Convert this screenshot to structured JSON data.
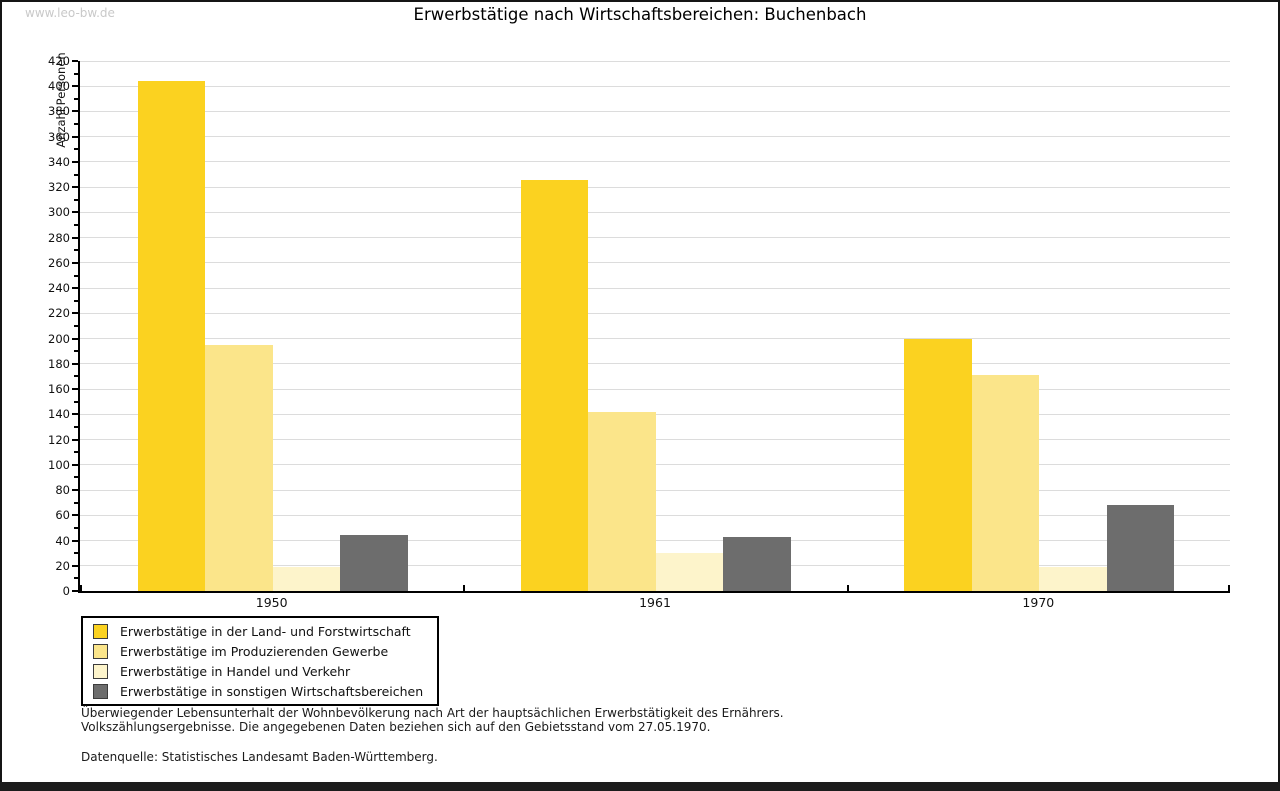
{
  "watermark": "www.leo-bw.de",
  "title": "Erwerbstätige nach Wirtschaftsbereichen: Buchenbach",
  "chart_data": {
    "type": "bar",
    "title": "Erwerbstätige nach Wirtschaftsbereichen: Buchenbach",
    "xlabel": "",
    "ylabel": "Anzahl Personen",
    "categories": [
      "1950",
      "1961",
      "1970"
    ],
    "series": [
      {
        "name": "Erwerbstätige in der Land- und Forstwirtschaft",
        "color": "#fbd220",
        "values": [
          404,
          326,
          200
        ]
      },
      {
        "name": "Erwerbstätige im Produzierenden Gewerbe",
        "color": "#fbe58a",
        "values": [
          195,
          142,
          171
        ]
      },
      {
        "name": "Erwerbstätige in Handel und Verkehr",
        "color": "#fdf4cb",
        "values": [
          19,
          30,
          19
        ]
      },
      {
        "name": "Erwerbstätige in sonstigen Wirtschaftsbereichen",
        "color": "#6d6d6d",
        "values": [
          44,
          43,
          68
        ]
      }
    ],
    "ylim": [
      0,
      420
    ],
    "yticks": [
      0,
      20,
      40,
      60,
      80,
      100,
      120,
      140,
      160,
      180,
      200,
      220,
      240,
      260,
      280,
      300,
      320,
      340,
      360,
      380,
      400,
      420
    ],
    "minor_tick_step": 10,
    "grid": "horizontal",
    "gridline_color": "#dcdcdc",
    "legend_position": "bottom-left"
  },
  "notes": {
    "line1": "Überwiegender Lebensunterhalt der Wohnbevölkerung nach Art der hauptsächlichen Erwerbstätigkeit des Ernährers.",
    "line2": "Volkszählungsergebnisse. Die angegebenen Daten beziehen sich auf den Gebietsstand vom 27.05.1970.",
    "source": "Datenquelle: Statistisches Landesamt Baden-Württemberg."
  }
}
